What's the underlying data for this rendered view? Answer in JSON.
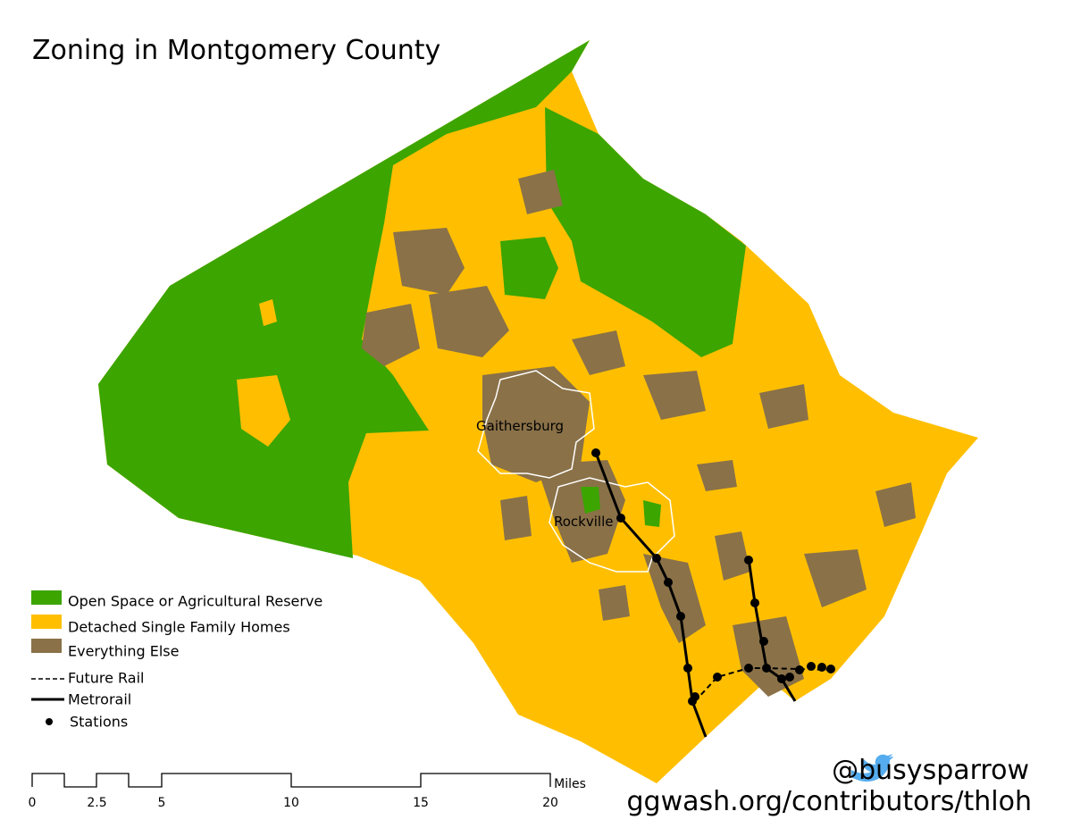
{
  "title": "Zoning in Montgomery County",
  "legend": [
    {
      "label": "Open Space or Agricultural Reserve",
      "color": "#3ca500"
    },
    {
      "label": "Detached Single Family Homes",
      "color": "#ffbf00"
    },
    {
      "label": "Everything Else",
      "color": "#8a7148"
    },
    {
      "label": "Future Rail"
    },
    {
      "label": "Metrorail"
    },
    {
      "label": "Stations"
    }
  ],
  "places": [
    "Gaithersburg",
    "Rockville"
  ],
  "scale": {
    "ticks": [
      0,
      2.5,
      5,
      10,
      15,
      20
    ],
    "unit": "Miles"
  },
  "credits": {
    "twitter": "@busysparrow",
    "url": "ggwash.org/contributors/thloh"
  }
}
